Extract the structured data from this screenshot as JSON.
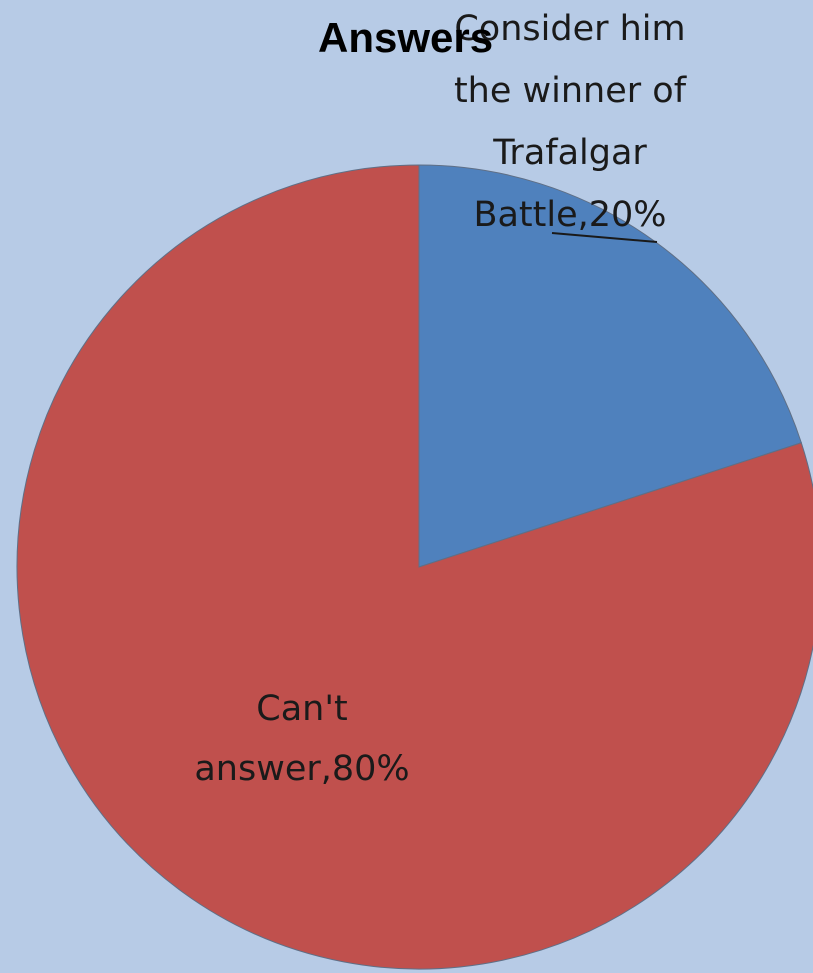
{
  "chart_data": {
    "type": "pie",
    "title": "Answers",
    "slices": [
      {
        "label": "Consider him the winner of Trafalgar Battle",
        "value": 20,
        "color": "#4f81bd",
        "label_lines": [
          "Consider him",
          "the winner of",
          "Trafalgar",
          "Battle,20%"
        ]
      },
      {
        "label": "Can't answer",
        "value": 80,
        "color": "#c0504d",
        "label_lines": [
          "Can't",
          "answer,80%"
        ]
      }
    ],
    "start_angle_deg": 0,
    "direction": "clockwise",
    "legend": "none",
    "background_color": "#b7cbe6"
  }
}
